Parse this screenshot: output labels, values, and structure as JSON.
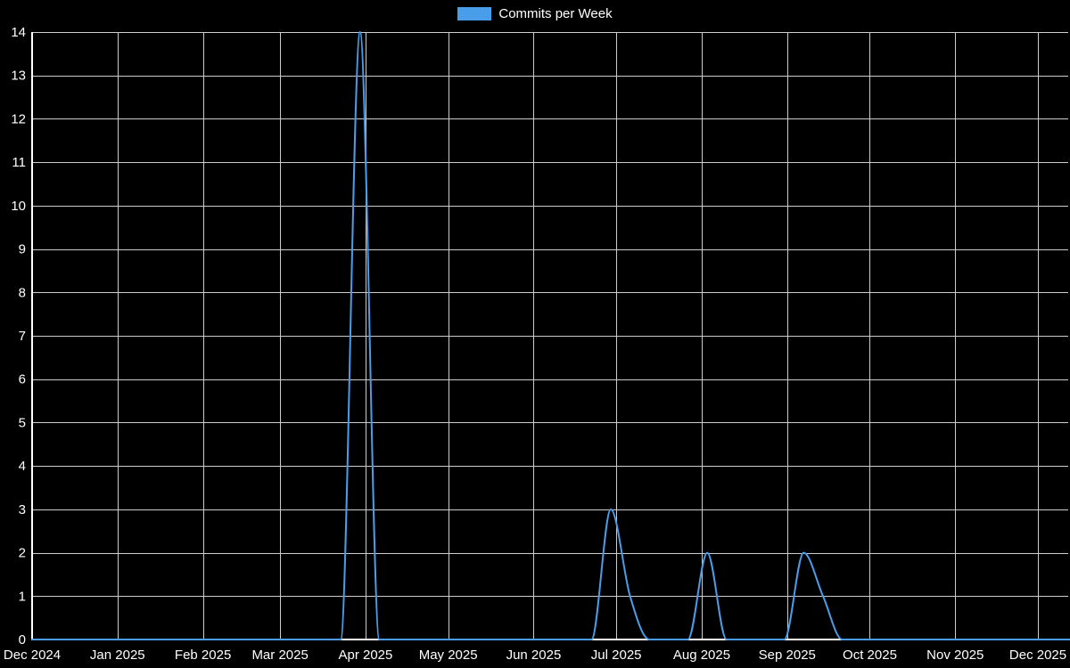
{
  "legend": {
    "label": "Commits per Week"
  },
  "chart_data": {
    "type": "line",
    "title": "Commits per Week",
    "xlabel": "",
    "ylabel": "",
    "smooth": true,
    "background": "#000000",
    "line_color": "#4a9de8",
    "grid_color": "#cccccc",
    "axis_color": "#ffffff",
    "text_color": "#ffffff",
    "ylim": [
      0,
      14
    ],
    "y_ticks": [
      0,
      1,
      2,
      3,
      4,
      5,
      6,
      7,
      8,
      9,
      10,
      11,
      12,
      13,
      14
    ],
    "x_range": [
      "2024-12-01",
      "2025-12-12"
    ],
    "x_ticks": [
      {
        "date": "2024-12-01",
        "label": "Dec 2024"
      },
      {
        "date": "2025-01-01",
        "label": "Jan 2025"
      },
      {
        "date": "2025-02-01",
        "label": "Feb 2025"
      },
      {
        "date": "2025-03-01",
        "label": "Mar 2025"
      },
      {
        "date": "2025-04-01",
        "label": "Apr 2025"
      },
      {
        "date": "2025-05-01",
        "label": "May 2025"
      },
      {
        "date": "2025-06-01",
        "label": "Jun 2025"
      },
      {
        "date": "2025-07-01",
        "label": "Jul 2025"
      },
      {
        "date": "2025-08-01",
        "label": "Aug 2025"
      },
      {
        "date": "2025-09-01",
        "label": "Sep 2025"
      },
      {
        "date": "2025-10-01",
        "label": "Oct 2025"
      },
      {
        "date": "2025-11-01",
        "label": "Nov 2025"
      },
      {
        "date": "2025-12-01",
        "label": "Dec 2025"
      }
    ],
    "x": [
      "2024-12-01",
      "2024-12-08",
      "2024-12-15",
      "2024-12-22",
      "2024-12-29",
      "2025-01-05",
      "2025-01-12",
      "2025-01-19",
      "2025-01-26",
      "2025-02-02",
      "2025-02-09",
      "2025-02-16",
      "2025-02-23",
      "2025-03-02",
      "2025-03-09",
      "2025-03-16",
      "2025-03-23",
      "2025-03-30",
      "2025-04-06",
      "2025-04-13",
      "2025-04-20",
      "2025-04-27",
      "2025-05-04",
      "2025-05-11",
      "2025-05-18",
      "2025-05-25",
      "2025-06-01",
      "2025-06-08",
      "2025-06-15",
      "2025-06-22",
      "2025-06-29",
      "2025-07-06",
      "2025-07-13",
      "2025-07-20",
      "2025-07-27",
      "2025-08-03",
      "2025-08-10",
      "2025-08-17",
      "2025-08-24",
      "2025-08-31",
      "2025-09-07",
      "2025-09-14",
      "2025-09-21",
      "2025-09-28",
      "2025-10-05",
      "2025-10-12",
      "2025-10-19",
      "2025-10-26",
      "2025-11-02",
      "2025-11-09",
      "2025-11-16",
      "2025-11-23",
      "2025-11-30",
      "2025-12-07",
      "2025-12-14"
    ],
    "values": [
      0,
      0,
      0,
      0,
      0,
      0,
      0,
      0,
      0,
      0,
      0,
      0,
      0,
      0,
      0,
      0,
      0,
      14,
      0,
      0,
      0,
      0,
      0,
      0,
      0,
      0,
      0,
      0,
      0,
      0,
      3,
      1,
      0,
      0,
      0,
      2,
      0,
      0,
      0,
      0,
      2,
      1,
      0,
      0,
      0,
      0,
      0,
      0,
      0,
      0,
      0,
      0,
      0,
      0,
      0
    ]
  }
}
